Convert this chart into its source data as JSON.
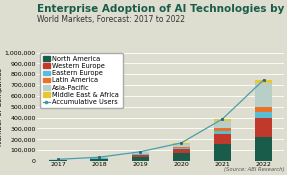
{
  "title": "Enterprise Adoption of AI Technologies by Region",
  "subtitle": "World Markets, Forecast: 2017 to 2022",
  "source": "(Source: ABI Research)",
  "years": [
    2017,
    2018,
    2019,
    2020,
    2021,
    2022
  ],
  "regions": [
    "North America",
    "Western Europe",
    "Eastern Europe",
    "Latin America",
    "Asia-Pacific",
    "Middle East & Africa"
  ],
  "colors": [
    "#1a5c4a",
    "#c0392b",
    "#5bbcd6",
    "#e8722a",
    "#b8cfc8",
    "#e8c832"
  ],
  "bar_data": {
    "North America": [
      8000,
      14000,
      38000,
      70000,
      155000,
      220000
    ],
    "Western Europe": [
      3500,
      9000,
      18000,
      38000,
      95000,
      180000
    ],
    "Eastern Europe": [
      800,
      2500,
      6000,
      13000,
      28000,
      48000
    ],
    "Latin America": [
      800,
      2500,
      5500,
      11000,
      23000,
      52000
    ],
    "Asia-Pacific": [
      2000,
      5500,
      14000,
      28000,
      68000,
      215000
    ],
    "Middle East & Africa": [
      400,
      1200,
      3500,
      7000,
      18000,
      32000
    ]
  },
  "accumulative_users": [
    15500,
    34700,
    85000,
    167000,
    387000,
    747000
  ],
  "acc_color": "#4a9ea8",
  "acc_marker_color": "#2a6070",
  "ylim": [
    0,
    1000000
  ],
  "yticks": [
    0,
    100000,
    200000,
    300000,
    400000,
    500000,
    600000,
    700000,
    800000,
    900000,
    1000000
  ],
  "ytick_labels": [
    "0",
    "100,000",
    "200,000",
    "300,000",
    "400,000",
    "500,000",
    "600,000",
    "700,000",
    "800,000",
    "900,000",
    "1,000,000"
  ],
  "title_fontsize": 7.5,
  "subtitle_fontsize": 5.5,
  "label_fontsize": 5.0,
  "tick_fontsize": 4.5,
  "legend_fontsize": 4.8,
  "background_color": "#deded0",
  "title_color": "#1a5c4a",
  "grid_color": "#ffffff"
}
